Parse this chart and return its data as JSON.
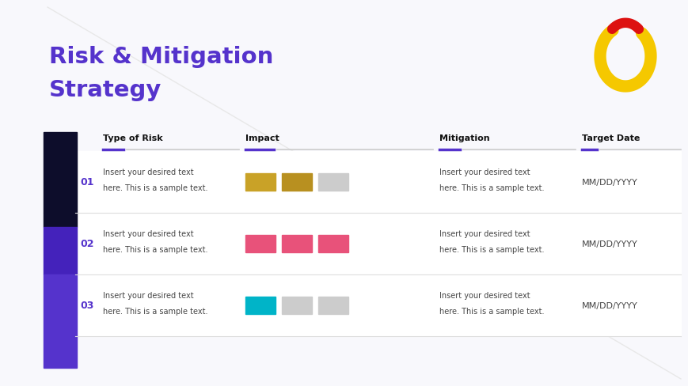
{
  "title_line1": "Risk & Mitigation",
  "title_line2": "Strategy",
  "title_color": "#5533cc",
  "bg_color": "#f8f8fc",
  "columns": [
    "Type of Risk",
    "Impact",
    "Mitigation",
    "Target Date"
  ],
  "col_header_color": "#111111",
  "col_underline_purple": "#5533cc",
  "col_underline_gray": "#cccccc",
  "rows": [
    {
      "num": "01",
      "text1": "Insert your desired text",
      "text2": "here. This is a sample text.",
      "impact_colors": [
        "#c9a227",
        "#b89020",
        "#cccccc"
      ],
      "mitigation_text1": "Insert your desired text",
      "mitigation_text2": "here. This is a sample text.",
      "date_text": "MM/DD/YYYY"
    },
    {
      "num": "02",
      "text1": "Insert your desired text",
      "text2": "here. This is a sample text.",
      "impact_colors": [
        "#e8527a",
        "#e8527a",
        "#e8527a"
      ],
      "mitigation_text1": "Insert your desired text",
      "mitigation_text2": "here. This is a sample text.",
      "date_text": "MM/DD/YYYY"
    },
    {
      "num": "03",
      "text1": "Insert your desired text",
      "text2": "here. This is a sample text.",
      "impact_colors": [
        "#00b4c8",
        "#cccccc",
        "#cccccc"
      ],
      "mitigation_text1": "Insert your desired text",
      "mitigation_text2": "here. This is a sample text.",
      "date_text": "MM/DD/YYYY"
    }
  ],
  "num_color": "#5533cc",
  "text_color": "#444444",
  "date_color": "#444444",
  "separator_color": "#dddddd",
  "left_sidebar_colors": [
    "#0d0d2b",
    "#4422bb",
    "#5533cc"
  ],
  "logo_yellow": "#f5c800",
  "logo_red": "#dd1111",
  "diagonal_line_color": "#e8e8e8"
}
